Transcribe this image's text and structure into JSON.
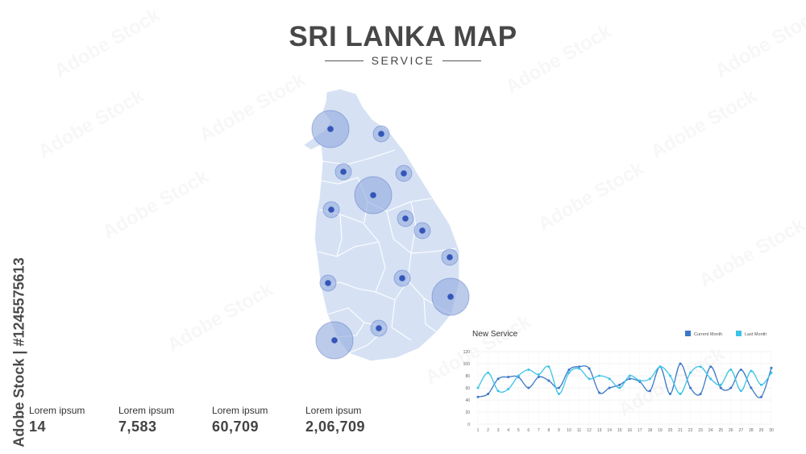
{
  "header": {
    "title": "SRI LANKA MAP",
    "subtitle": "SERVICE"
  },
  "watermark": {
    "side_text": "Adobe Stock | #1245575613",
    "tile_text": "Adobe Stock"
  },
  "stats": [
    {
      "label": "Lorem ipsum",
      "value": "14"
    },
    {
      "label": "Lorem ipsum",
      "value": "7,583"
    },
    {
      "label": "Lorem ipsum",
      "value": "60,709"
    },
    {
      "label": "Lorem ipsum",
      "value": "2,06,709"
    }
  ],
  "map": {
    "fill_color": "#d6e2f4",
    "border_color": "#ffffff",
    "marker_color": "#3556b8",
    "halo_color": "#8fa8dc",
    "markers": [
      {
        "name": "Jaffna",
        "size": "large"
      },
      {
        "name": "Mullaitivu",
        "size": "small"
      },
      {
        "name": "Vavuniya",
        "size": "small"
      },
      {
        "name": "Trincomalee",
        "size": "small"
      },
      {
        "name": "Anuradhapura",
        "size": "large"
      },
      {
        "name": "Puttalam",
        "size": "small"
      },
      {
        "name": "Polonnaruwa",
        "size": "small"
      },
      {
        "name": "Batticaloa",
        "size": "small"
      },
      {
        "name": "Ampara",
        "size": "small"
      },
      {
        "name": "Colombo",
        "size": "small"
      },
      {
        "name": "Badulla",
        "size": "small"
      },
      {
        "name": "Monaragala",
        "size": "large"
      },
      {
        "name": "Ratnapura",
        "size": "small"
      },
      {
        "name": "Galle",
        "size": "large"
      }
    ]
  },
  "chart_data": {
    "type": "line",
    "title": "New Service",
    "legend_position": "top-right",
    "x": [
      1,
      2,
      3,
      4,
      5,
      6,
      7,
      8,
      9,
      10,
      11,
      12,
      13,
      14,
      15,
      16,
      17,
      18,
      19,
      20,
      21,
      22,
      23,
      24,
      25,
      26,
      27,
      28,
      29,
      30
    ],
    "ylim": [
      0,
      120
    ],
    "yticks": [
      0,
      20,
      40,
      60,
      80,
      100,
      120
    ],
    "grid": true,
    "series": [
      {
        "name": "Current Month",
        "color": "#3b78c7",
        "values": [
          45,
          50,
          75,
          78,
          78,
          60,
          78,
          72,
          60,
          90,
          95,
          92,
          52,
          60,
          65,
          75,
          70,
          55,
          95,
          50,
          100,
          60,
          50,
          95,
          60,
          60,
          90,
          60,
          45,
          93
        ]
      },
      {
        "name": "Last Month",
        "color": "#3bc3e8",
        "values": [
          60,
          85,
          55,
          58,
          80,
          90,
          82,
          95,
          50,
          85,
          92,
          75,
          80,
          75,
          60,
          80,
          72,
          75,
          95,
          80,
          50,
          85,
          95,
          75,
          65,
          90,
          55,
          88,
          65,
          85
        ]
      }
    ]
  }
}
